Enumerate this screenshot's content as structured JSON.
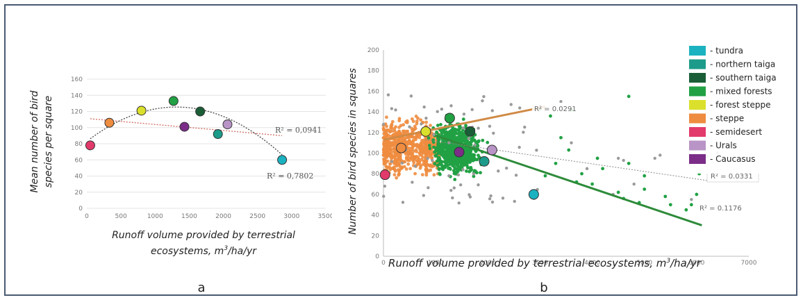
{
  "chart_data": [
    {
      "id": "a",
      "type": "scatter",
      "panel_label": "a",
      "xlabel": "Runoff volume provided by terrestrial ecosystems, m3/ha/yr",
      "xlabel_parts": {
        "line1": "Runoff volume provided by terrestrial",
        "line2_pre": "ecosystems, m",
        "line2_sup": "3",
        "line2_post": "/ha/yr"
      },
      "ylabel": "Mean number of bird species per square",
      "ylabel_lines": [
        "Mean number of bird",
        "species per square"
      ],
      "xlim": [
        0,
        3500
      ],
      "ylim": [
        0,
        160
      ],
      "xticks": [
        0,
        500,
        1000,
        1500,
        2000,
        2500,
        3000,
        3500
      ],
      "yticks": [
        0,
        20,
        40,
        60,
        80,
        100,
        120,
        140,
        160
      ],
      "points": [
        {
          "zone": "semidesert",
          "x": 50,
          "y": 78
        },
        {
          "zone": "steppe",
          "x": 330,
          "y": 106
        },
        {
          "zone": "forest steppe",
          "x": 800,
          "y": 121
        },
        {
          "zone": "mixed forests",
          "x": 1270,
          "y": 133
        },
        {
          "zone": "Caucasus",
          "x": 1430,
          "y": 101
        },
        {
          "zone": "southern taiga",
          "x": 1660,
          "y": 120
        },
        {
          "zone": "northern taiga",
          "x": 1920,
          "y": 92
        },
        {
          "zone": "Urals",
          "x": 2060,
          "y": 104
        },
        {
          "zone": "tundra",
          "x": 2860,
          "y": 60
        }
      ],
      "linear_fit": {
        "r2_label": "R² = 0,0941",
        "x": [
          50,
          2860
        ],
        "y": [
          111,
          90
        ]
      },
      "poly_fit": {
        "r2_label": "R² = 0,7802",
        "x0": 50,
        "x1": 2860,
        "coef": [
          83,
          0.0648,
          -2.47e-05
        ]
      }
    },
    {
      "id": "b",
      "type": "scatter",
      "panel_label": "b",
      "xlabel": "Runoff volume provided by terrestrial ecosystems, m3/ha/yr",
      "xlabel_parts": {
        "pre": "Runoff volume provided by terrestrial ecosystems, m",
        "sup": "3",
        "post": "/ha/yr"
      },
      "ylabel": "Number of bird species in squares",
      "xlim": [
        0,
        7000
      ],
      "ylim": [
        0,
        200
      ],
      "xticks": [
        0,
        1000,
        2000,
        3000,
        4000,
        5000,
        6000,
        7000
      ],
      "yticks": [
        0,
        20,
        40,
        60,
        80,
        100,
        120,
        140,
        160,
        180,
        200
      ],
      "steppe_cloud": {
        "x": [
          0,
          1100
        ],
        "y": [
          30,
          180
        ],
        "n": 700
      },
      "forest_cloud": {
        "x": [
          600,
          2600
        ],
        "y": [
          25,
          185
        ],
        "n": 750
      },
      "urals_cloud": {
        "x": [
          0,
          3000
        ],
        "y": [
          50,
          160
        ],
        "n": 70
      },
      "green_outliers": [
        [
          4700,
          155
        ],
        [
          3000,
          143
        ],
        [
          3200,
          136
        ],
        [
          3600,
          142
        ],
        [
          3400,
          115
        ],
        [
          3100,
          78
        ],
        [
          3550,
          103
        ],
        [
          3800,
          80
        ],
        [
          4000,
          70
        ],
        [
          4200,
          85
        ],
        [
          4100,
          95
        ],
        [
          4500,
          62
        ],
        [
          4600,
          56
        ],
        [
          4700,
          90
        ],
        [
          5000,
          65
        ],
        [
          5000,
          78
        ],
        [
          5400,
          58
        ],
        [
          5500,
          50
        ],
        [
          5900,
          50
        ],
        [
          6000,
          60
        ],
        [
          6050,
          80
        ],
        [
          6100,
          98
        ],
        [
          5800,
          45
        ],
        [
          4900,
          52
        ],
        [
          3700,
          72
        ],
        [
          3300,
          90
        ]
      ],
      "grey_outliers": [
        [
          3600,
          110
        ],
        [
          3900,
          85
        ],
        [
          4500,
          95
        ],
        [
          4600,
          93
        ],
        [
          4800,
          70
        ],
        [
          5200,
          95
        ],
        [
          5300,
          98
        ],
        [
          6000,
          93
        ],
        [
          6200,
          97
        ],
        [
          6400,
          100
        ],
        [
          5900,
          55
        ],
        [
          3400,
          150
        ],
        [
          4400,
          60
        ]
      ],
      "zone_means": [
        {
          "zone": "semidesert",
          "x": 30,
          "y": 79
        },
        {
          "zone": "steppe",
          "x": 340,
          "y": 105
        },
        {
          "zone": "forest steppe",
          "x": 810,
          "y": 121
        },
        {
          "zone": "mixed forests",
          "x": 1270,
          "y": 134
        },
        {
          "zone": "Caucasus",
          "x": 1450,
          "y": 101
        },
        {
          "zone": "southern taiga",
          "x": 1660,
          "y": 121
        },
        {
          "zone": "northern taiga",
          "x": 1930,
          "y": 92
        },
        {
          "zone": "Urals",
          "x": 2080,
          "y": 103
        },
        {
          "zone": "tundra",
          "x": 2880,
          "y": 60
        }
      ],
      "fits": [
        {
          "name": "steppe",
          "color": "#d08a45",
          "x": [
            0,
            3100
          ],
          "y": [
            113,
            145
          ],
          "r2_label": "R² = 0.0291"
        },
        {
          "name": "forest",
          "color": "#2e8b3a",
          "x": [
            1000,
            6100
          ],
          "y": [
            117,
            30
          ],
          "r2_label": "R² = 0.1176"
        },
        {
          "name": "urals",
          "color": "#888888",
          "x": [
            800,
            6400
          ],
          "y": [
            113,
            72
          ],
          "r2_label": "R² = 0.0331"
        }
      ]
    }
  ],
  "legend": [
    {
      "label": "- tundra",
      "color": "#1ab2c0"
    },
    {
      "label": "- northern taiga",
      "color": "#1d9b8a"
    },
    {
      "label": "- southern taiga",
      "color": "#1a5e37"
    },
    {
      "label": "- mixed forests",
      "color": "#21a144"
    },
    {
      "label": "- forest steppe",
      "color": "#dbe02c"
    },
    {
      "label": "- steppe",
      "color": "#ee8c3f"
    },
    {
      "label": "- semidesert",
      "color": "#e23a6b"
    },
    {
      "label": "- Urals",
      "color": "#b894c7"
    },
    {
      "label": "- Caucasus",
      "color": "#7b2d88"
    }
  ],
  "colors": {
    "tundra": "#1ab2c0",
    "northern taiga": "#1d9b8a",
    "southern taiga": "#1a5e37",
    "mixed forests": "#21a144",
    "forest steppe": "#dbe02c",
    "steppe": "#ee8c3f",
    "semidesert": "#e23a6b",
    "Urals": "#b894c7",
    "Caucasus": "#7b2d88",
    "frame": "#4a5a72"
  }
}
